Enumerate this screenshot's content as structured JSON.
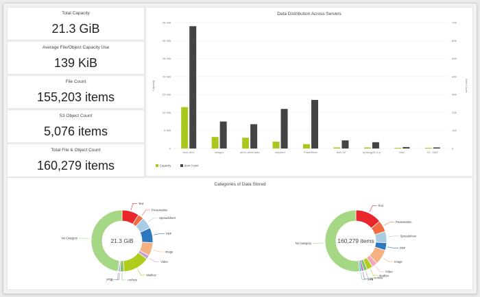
{
  "stats": [
    {
      "label": "Total Capacity",
      "value": "21.3 GiB"
    },
    {
      "label": "Average File/Object Capacity Use",
      "value": "139 KiB"
    },
    {
      "label": "File Count",
      "value": "155,203 items"
    },
    {
      "label": "S3 Object Count",
      "value": "5,076 items"
    },
    {
      "label": "Total File & Object Count",
      "value": "160,279 items"
    }
  ],
  "bar_panel": {
    "title": "Data Distribution Across Servers"
  },
  "donut_panel": {
    "title": "Categories of Data Stored"
  },
  "colors": {
    "capacity": "#a8c81e",
    "item_count": "#444444"
  },
  "chart_data": [
    {
      "type": "bar",
      "title": "Data Distribution Across Servers",
      "categories": [
        "linux-dev1",
        "netapp1",
        "win01.demo.data",
        "objstore1",
        "PowerStore",
        "NAS-02",
        "synology01.lc.p",
        "Misc",
        "S3 - NAS"
      ],
      "series": [
        {
          "name": "Capacity",
          "values": [
            11.5,
            3.2,
            3.0,
            1.9,
            1.2,
            0.3,
            0.3,
            0.2,
            0.2
          ]
        },
        {
          "name": "Item Count",
          "values": [
            68000,
            15000,
            13500,
            22000,
            27000,
            4500,
            3500,
            800,
            600
          ]
        }
      ],
      "ylabel": "Capacity",
      "y2label": "Item Count",
      "ylim": [
        0,
        35
      ],
      "y2lim": [
        0,
        70000
      ],
      "yticks": [
        "35 GiB",
        "30 GiB",
        "25 GiB",
        "20 GiB",
        "15 GiB",
        "10 GiB",
        "5 GiB",
        "0"
      ],
      "y2ticks": [
        "70K",
        "60K",
        "50K",
        "40K",
        "30K",
        "20K",
        "10K",
        "0"
      ],
      "legend": "bottom-left"
    },
    {
      "type": "pie",
      "center_label": "21.3 GiB",
      "labels": [
        "Text",
        "Presentation",
        "Spreadsheet",
        "PDF",
        "Image",
        "Video",
        "Mailbox",
        "Archive",
        "JS",
        "XPS",
        "No Category"
      ],
      "values": [
        9,
        3,
        6,
        8,
        7,
        2,
        14,
        2,
        0.6,
        0.6,
        47.8
      ],
      "colors": [
        "#e8262b",
        "#f26a3f",
        "#a9cce3",
        "#2e78c0",
        "#f6b183",
        "#c9a0d8",
        "#b0cc1c",
        "#8bbf6a",
        "#9b59b6",
        "#5bc0be",
        "#a6d785"
      ]
    },
    {
      "type": "pie",
      "center_label": "160,279 items",
      "labels": [
        "Text",
        "Presentation",
        "Spreadsheet",
        "PDF",
        "Image",
        "Video",
        "Mailbox",
        "Archive",
        "JS",
        "XPS",
        "No Category"
      ],
      "values": [
        14,
        6,
        6,
        4,
        8,
        3,
        3,
        2,
        1,
        1,
        52
      ],
      "colors": [
        "#e8262b",
        "#f26a3f",
        "#a9cce3",
        "#2e78c0",
        "#f6b183",
        "#f4a7b9",
        "#b0cc1c",
        "#8bbf6a",
        "#9b59b6",
        "#5bc0be",
        "#a6d785"
      ]
    }
  ]
}
